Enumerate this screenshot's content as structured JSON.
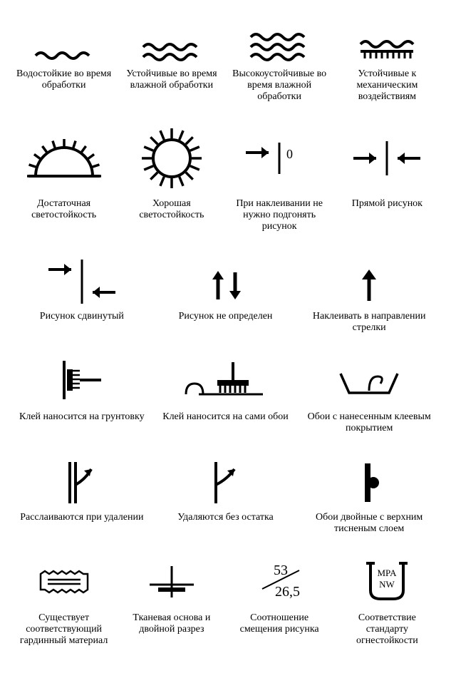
{
  "stroke": "#000000",
  "bg": "#ffffff",
  "font": "Times New Roman",
  "label_fontsize": 14,
  "rows": [
    {
      "cols": 4,
      "items": [
        {
          "icon": "wave1",
          "label": "Водостойкие во время обработки"
        },
        {
          "icon": "wave2",
          "label": "Устойчивые во время влажной обработки"
        },
        {
          "icon": "wave3",
          "label": "Высокоустойчивые во время влажной обработки"
        },
        {
          "icon": "wave-brush",
          "label": "Устойчивые к механическим воздействиям"
        }
      ]
    },
    {
      "cols": 4,
      "items": [
        {
          "icon": "half-sun",
          "label": "Достаточная светостойкость"
        },
        {
          "icon": "full-sun",
          "label": "Хорошая светостойкость"
        },
        {
          "icon": "arrow-bar-zero",
          "label": "При наклеивании не нужно подгонять рисунок"
        },
        {
          "icon": "arrows-to-bar",
          "label": "Прямой рисунок"
        }
      ]
    },
    {
      "cols": 3,
      "items": [
        {
          "icon": "arrows-offset",
          "label": "Рисунок сдвинутый"
        },
        {
          "icon": "arrows-up-down",
          "label": "Рисунок не определен"
        },
        {
          "icon": "arrow-up",
          "label": "Наклеивать в направлении стрелки"
        }
      ]
    },
    {
      "cols": 3,
      "items": [
        {
          "icon": "brush-wall",
          "label": "Клей наносится на грунтовку"
        },
        {
          "icon": "brush-roll",
          "label": "Клей наносится на сами обои"
        },
        {
          "icon": "water-tray",
          "label": "Обои с нанесенным клеевым покрытием"
        }
      ]
    },
    {
      "cols": 3,
      "items": [
        {
          "icon": "peel-layers",
          "label": "Расслаиваются при удалении"
        },
        {
          "icon": "peel-single",
          "label": "Удаляются без остатка"
        },
        {
          "icon": "duplex",
          "label": "Обои двойные с верхним тисненым слоем"
        }
      ]
    },
    {
      "cols": 4,
      "items": [
        {
          "icon": "fabric-stamp",
          "label": "Существует соответствующий гардинный материал"
        },
        {
          "icon": "weave-cut",
          "label": "Тканевая основа и двойной разрез"
        },
        {
          "icon": "ratio",
          "label": "Соотношение смещения рисунка",
          "ratio_top": "53",
          "ratio_bottom": "26,5"
        },
        {
          "icon": "fire-cup",
          "label": "Соответствие стандарту огнестойкости",
          "cup_text1": "MPA",
          "cup_text2": "NW"
        }
      ]
    }
  ]
}
